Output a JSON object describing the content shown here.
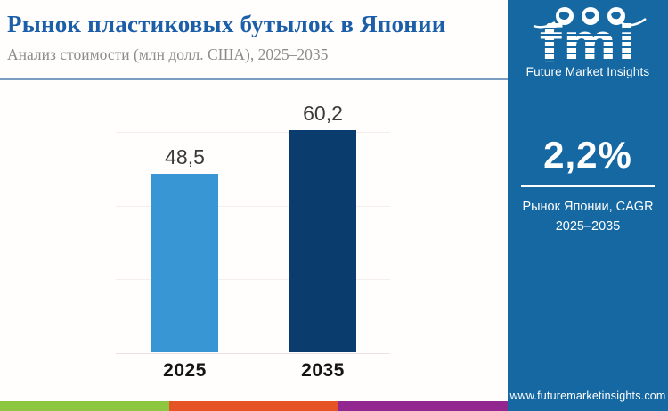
{
  "header": {
    "title": "Рынок пластиковых бутылок в Японии",
    "subtitle": "Анализ стоимости (млн долл. США), 2025–2035"
  },
  "chart_data": {
    "type": "bar",
    "title": "Рынок пластиковых бутылок в Японии",
    "subtitle": "Анализ стоимости (млн долл. США), 2025–2035",
    "categories": [
      "2025",
      "2035"
    ],
    "values": [
      48.5,
      60.2
    ],
    "value_labels": [
      "48,5",
      "60,2"
    ],
    "xlabel": "",
    "ylabel": "млн долл. США",
    "ylim": [
      0,
      60
    ],
    "gridlines": [
      0,
      20,
      40,
      60
    ],
    "grid": "horizontal-faint",
    "legend": "none",
    "bar_colors": [
      "#3796d3",
      "#0b3c6e"
    ]
  },
  "sidebar": {
    "logo": {
      "word": "fmi",
      "tagline": "Future Market Insights",
      "icons": [
        "globe-americas-icon",
        "globe-europe-icon",
        "globe-asia-icon"
      ]
    },
    "cagr": {
      "value": "2,2%",
      "label_line1": "Рынок Японии, CAGR",
      "label_line2": "2025–2035"
    },
    "url": "www.futuremarketinsights.com"
  },
  "colors": {
    "title_blue": "#1c5fa8",
    "subtitle_gray": "#8c8c8c",
    "separator": "#7c9dc2",
    "sidebar_bg": "#1568a2",
    "bar_2025": "#3796d3",
    "bar_2035": "#0b3c6e",
    "stripe_green": "#8dc63f",
    "stripe_orange": "#e65425",
    "stripe_purple": "#92278f"
  },
  "footer_stripe": [
    "#8dc63f",
    "#e65425",
    "#92278f"
  ]
}
